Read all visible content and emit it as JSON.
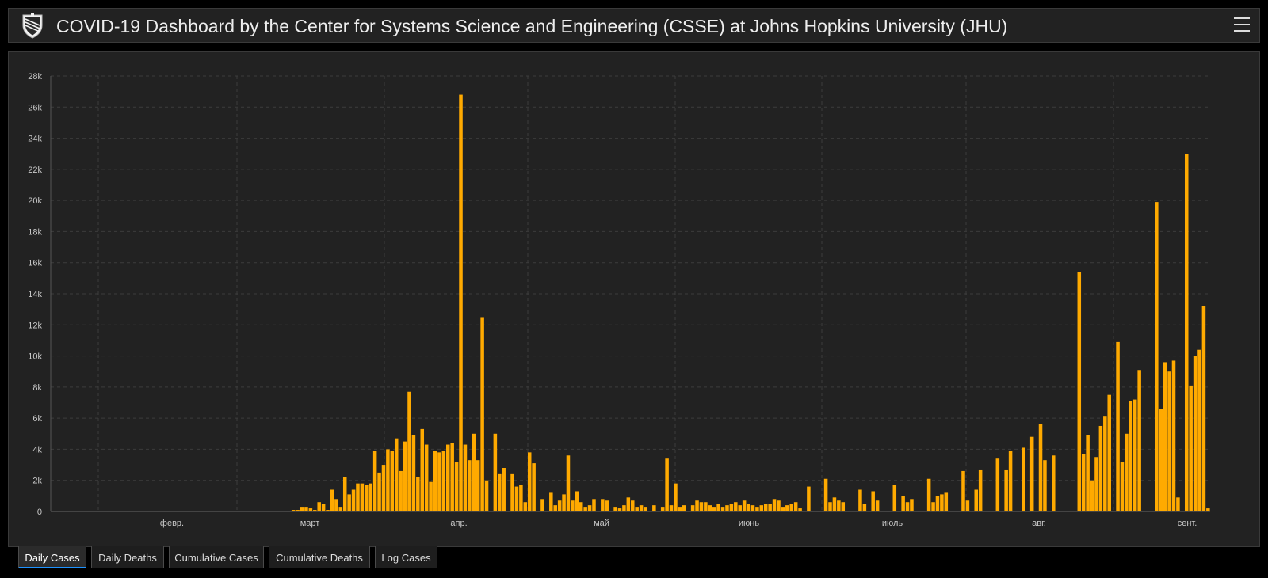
{
  "header": {
    "title": "COVID-19 Dashboard by the Center for Systems Science and Engineering (CSSE) at Johns Hopkins University (JHU)"
  },
  "tabs": [
    {
      "label": "Daily Cases",
      "active": true
    },
    {
      "label": "Daily Deaths",
      "active": false
    },
    {
      "label": "Cumulative Cases",
      "active": false
    },
    {
      "label": "Cumulative Deaths",
      "active": false
    },
    {
      "label": "Log Cases",
      "active": false
    }
  ],
  "colors": {
    "bar": "#ffaa00",
    "background": "#222222",
    "grid": "#3c3c3c",
    "text": "#c8c8c8",
    "active_tab_underline": "#1f93ff"
  },
  "chart_data": {
    "type": "bar",
    "ylim": [
      0,
      28000
    ],
    "y_ticks": [
      "0",
      "2k",
      "4k",
      "6k",
      "8k",
      "10k",
      "12k",
      "14k",
      "16k",
      "18k",
      "20k",
      "22k",
      "24k",
      "26k",
      "28k"
    ],
    "x_ticks": [
      "февр.",
      "март",
      "апр.",
      "май",
      "июнь",
      "июль",
      "авг.",
      "сент."
    ],
    "grid": true,
    "values": [
      0,
      0,
      0,
      0,
      0,
      0,
      0,
      0,
      0,
      0,
      0,
      0,
      0,
      0,
      0,
      0,
      0,
      0,
      0,
      0,
      0,
      0,
      0,
      0,
      0,
      0,
      0,
      0,
      0,
      0,
      0,
      0,
      0,
      0,
      0,
      0,
      0,
      0,
      0,
      0,
      0,
      0,
      0,
      0,
      0,
      0,
      0,
      0,
      0,
      0,
      20,
      20,
      50,
      30,
      30,
      50,
      100,
      100,
      300,
      300,
      200,
      100,
      600,
      500,
      100,
      1400,
      800,
      300,
      2200,
      1100,
      1400,
      1800,
      1800,
      1700,
      1800,
      3900,
      2500,
      3000,
      4000,
      3900,
      4700,
      2600,
      4500,
      7700,
      4900,
      2200,
      5300,
      4300,
      1900,
      3900,
      3800,
      3900,
      4300,
      4400,
      3200,
      26800,
      4300,
      3300,
      5000,
      3300,
      12500,
      2000,
      0,
      5000,
      2400,
      2800,
      0,
      2400,
      1600,
      1700,
      600,
      3800,
      3100,
      0,
      800,
      0,
      1200,
      400,
      700,
      1100,
      3600,
      700,
      1300,
      600,
      300,
      400,
      800,
      0,
      800,
      700,
      0,
      300,
      200,
      400,
      900,
      700,
      300,
      400,
      300,
      0,
      400,
      0,
      300,
      3400,
      400,
      1800,
      300,
      400,
      0,
      400,
      700,
      600,
      600,
      400,
      300,
      500,
      300,
      400,
      500,
      600,
      400,
      700,
      500,
      400,
      300,
      400,
      500,
      500,
      800,
      700,
      300,
      400,
      500,
      600,
      200,
      0,
      1600,
      0,
      0,
      0,
      2100,
      600,
      900,
      700,
      600,
      0,
      0,
      0,
      1400,
      500,
      0,
      1300,
      700,
      0,
      0,
      0,
      1700,
      0,
      1000,
      600,
      800,
      0,
      0,
      0,
      2100,
      600,
      1000,
      1100,
      1200,
      0,
      0,
      0,
      2600,
      700,
      0,
      1400,
      2700,
      0,
      0,
      0,
      3400,
      0,
      2700,
      3900,
      0,
      0,
      4100,
      0,
      4800,
      0,
      5600,
      3300,
      0,
      3600,
      0,
      0,
      0,
      0,
      0,
      15400,
      3700,
      4900,
      2000,
      3500,
      5500,
      6100,
      7500,
      0,
      10900,
      3200,
      5000,
      7100,
      7200,
      9100,
      0,
      0,
      0,
      19900,
      6600,
      9600,
      9000,
      9700,
      900,
      0,
      23000,
      8100,
      10000,
      10400,
      13200,
      200
    ]
  }
}
